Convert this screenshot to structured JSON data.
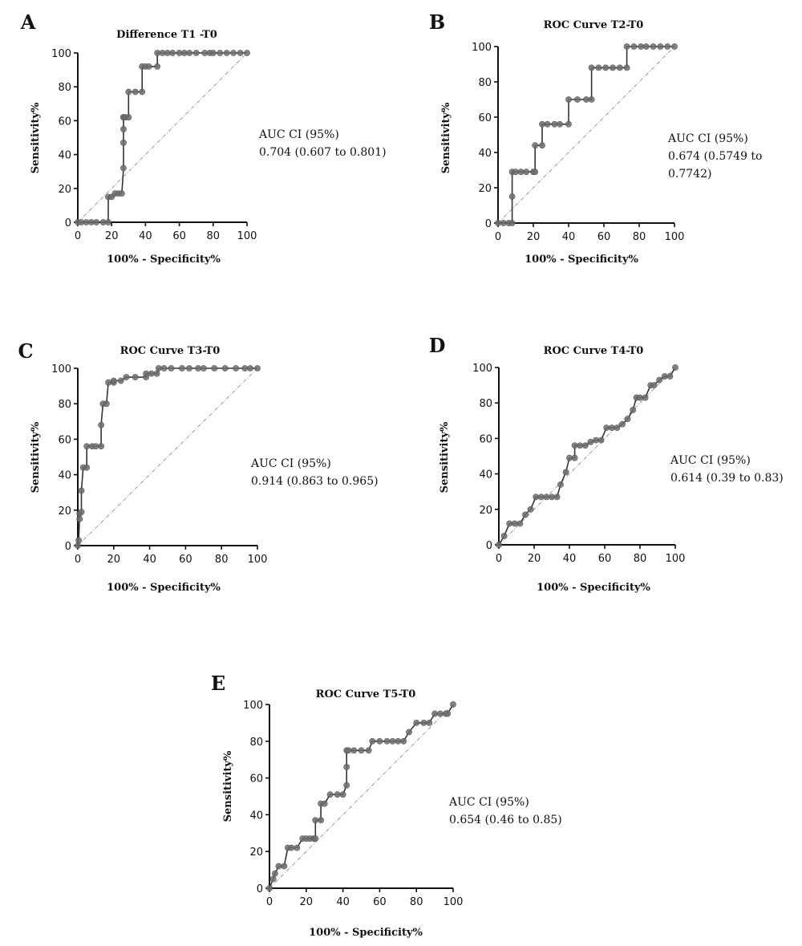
{
  "chart_data": [
    {
      "type": "line",
      "panel": "A",
      "title": "Difference T1 -T0",
      "xlabel": "100% - Specificity%",
      "ylabel": "Sensitivity%",
      "xlim": [
        0,
        100
      ],
      "ylim": [
        0,
        100
      ],
      "xticks": [
        "0",
        "20",
        "40",
        "60",
        "80",
        "100"
      ],
      "yticks": [
        "0",
        "20",
        "40",
        "60",
        "80",
        "100"
      ],
      "annotation": [
        "AUC  CI (95%)",
        "0.704 (0.607 to 0.801)"
      ],
      "reference_line": "diagonal",
      "x": [
        0,
        2,
        5,
        8,
        11,
        15,
        18,
        18,
        20,
        22,
        24,
        26,
        27,
        27,
        27,
        27,
        27,
        28,
        30,
        30,
        34,
        38,
        38,
        40,
        42,
        47,
        47,
        50,
        53,
        56,
        60,
        63,
        66,
        70,
        75,
        78,
        80,
        84,
        88,
        92,
        96,
        100
      ],
      "y": [
        0,
        0,
        0,
        0,
        0,
        0,
        0,
        15,
        15,
        17,
        17,
        17,
        32,
        47,
        55,
        62,
        62,
        62,
        62,
        77,
        77,
        77,
        92,
        92,
        92,
        92,
        100,
        100,
        100,
        100,
        100,
        100,
        100,
        100,
        100,
        100,
        100,
        100,
        100,
        100,
        100,
        100
      ]
    },
    {
      "type": "line",
      "panel": "B",
      "title": "ROC Curve T2-T0",
      "xlabel": "100% - Specificity%",
      "ylabel": "Sensitivity%",
      "xlim": [
        0,
        100
      ],
      "ylim": [
        0,
        100
      ],
      "xticks": [
        "0",
        "20",
        "40",
        "60",
        "80",
        "100"
      ],
      "yticks": [
        "0",
        "20",
        "40",
        "60",
        "80",
        "100"
      ],
      "annotation": [
        "AUC  CI (95%)",
        "0.674 (0.5749 to",
        "0.7742)"
      ],
      "reference_line": "diagonal",
      "x": [
        0,
        3,
        6,
        8,
        8,
        8,
        10,
        13,
        16,
        20,
        21,
        21,
        25,
        25,
        28,
        32,
        35,
        40,
        40,
        45,
        50,
        53,
        53,
        57,
        61,
        65,
        69,
        73,
        73,
        77,
        81,
        84,
        88,
        92,
        96,
        100
      ],
      "y": [
        0,
        0,
        0,
        0,
        15,
        29,
        29,
        29,
        29,
        29,
        29,
        44,
        44,
        56,
        56,
        56,
        56,
        56,
        70,
        70,
        70,
        70,
        88,
        88,
        88,
        88,
        88,
        88,
        100,
        100,
        100,
        100,
        100,
        100,
        100,
        100
      ]
    },
    {
      "type": "line",
      "panel": "C",
      "title": "ROC Curve T3-T0",
      "xlabel": "100% - Specificity%",
      "ylabel": "Sensitivity%",
      "xlim": [
        0,
        100
      ],
      "ylim": [
        0,
        100
      ],
      "xticks": [
        "0",
        "20",
        "40",
        "60",
        "80",
        "100"
      ],
      "yticks": [
        "0",
        "20",
        "40",
        "60",
        "80",
        "100"
      ],
      "annotation": [
        "AUC CI (95%)",
        "0.914 (0.863 to 0.965)"
      ],
      "reference_line": "diagonal",
      "x": [
        0,
        0.5,
        1,
        1,
        2,
        2,
        3,
        5,
        5,
        8,
        10,
        13,
        13,
        14,
        16,
        17,
        20,
        20,
        24,
        27,
        32,
        38,
        38,
        41,
        44,
        45,
        48,
        52,
        58,
        62,
        67,
        70,
        76,
        82,
        88,
        93,
        96,
        100
      ],
      "y": [
        0,
        3,
        15,
        18,
        19,
        31,
        44,
        44,
        56,
        56,
        56,
        56,
        68,
        80,
        80,
        92,
        92,
        93,
        93,
        95,
        95,
        95,
        97,
        97,
        97,
        100,
        100,
        100,
        100,
        100,
        100,
        100,
        100,
        100,
        100,
        100,
        100,
        100
      ]
    },
    {
      "type": "line",
      "panel": "D",
      "title": "ROC Curve T4-T0",
      "xlabel": "100% - Specificity%",
      "ylabel": "Sensitivity%",
      "xlim": [
        0,
        100
      ],
      "ylim": [
        0,
        100
      ],
      "xticks": [
        "0",
        "20",
        "40",
        "60",
        "80",
        "100"
      ],
      "yticks": [
        "0",
        "20",
        "40",
        "60",
        "80",
        "100"
      ],
      "annotation": [
        "AUC CI (95%)",
        "0.614 (0.39 to 0.83)"
      ],
      "reference_line": "diagonal",
      "x": [
        0,
        3,
        6,
        9,
        12,
        15,
        18,
        21,
        24,
        27,
        30,
        33,
        35,
        38,
        40,
        43,
        43,
        46,
        49,
        52,
        55,
        58,
        61,
        64,
        67,
        70,
        73,
        76,
        78,
        80,
        83,
        86,
        88,
        91,
        94,
        97,
        100
      ],
      "y": [
        0,
        5,
        12,
        12,
        12,
        17,
        20,
        27,
        27,
        27,
        27,
        27,
        34,
        41,
        49,
        49,
        56,
        56,
        56,
        58,
        59,
        59,
        66,
        66,
        66,
        68,
        71,
        76,
        83,
        83,
        83,
        90,
        90,
        93,
        95,
        95,
        100
      ],
      "xaxis_ticklabels_extra": "100"
    },
    {
      "type": "line",
      "panel": "E",
      "title": "ROC Curve T5-T0",
      "xlabel": "100% - Specificity%",
      "ylabel": "Sensitivity%",
      "xlim": [
        0,
        100
      ],
      "ylim": [
        0,
        100
      ],
      "xticks": [
        "0",
        "20",
        "40",
        "60",
        "80",
        "100"
      ],
      "yticks": [
        "0",
        "20",
        "40",
        "60",
        "80",
        "100"
      ],
      "annotation": [
        "AUC CI (95%)",
        "0.654 (0.46 to 0.85)"
      ],
      "reference_line": "diagonal",
      "x": [
        0,
        2,
        3,
        5,
        8,
        10,
        12,
        15,
        18,
        20,
        22,
        24,
        25,
        25,
        28,
        28,
        30,
        33,
        37,
        40,
        42,
        42,
        42,
        43,
        46,
        50,
        54,
        56,
        60,
        64,
        67,
        70,
        73,
        76,
        80,
        84,
        87,
        90,
        93,
        96,
        97,
        100
      ],
      "y": [
        0,
        5,
        8,
        12,
        12,
        22,
        22,
        22,
        27,
        27,
        27,
        27,
        27,
        37,
        37,
        46,
        46,
        51,
        51,
        51,
        56,
        66,
        75,
        75,
        75,
        75,
        75,
        80,
        80,
        80,
        80,
        80,
        80,
        85,
        90,
        90,
        90,
        95,
        95,
        95,
        95,
        100
      ]
    }
  ]
}
